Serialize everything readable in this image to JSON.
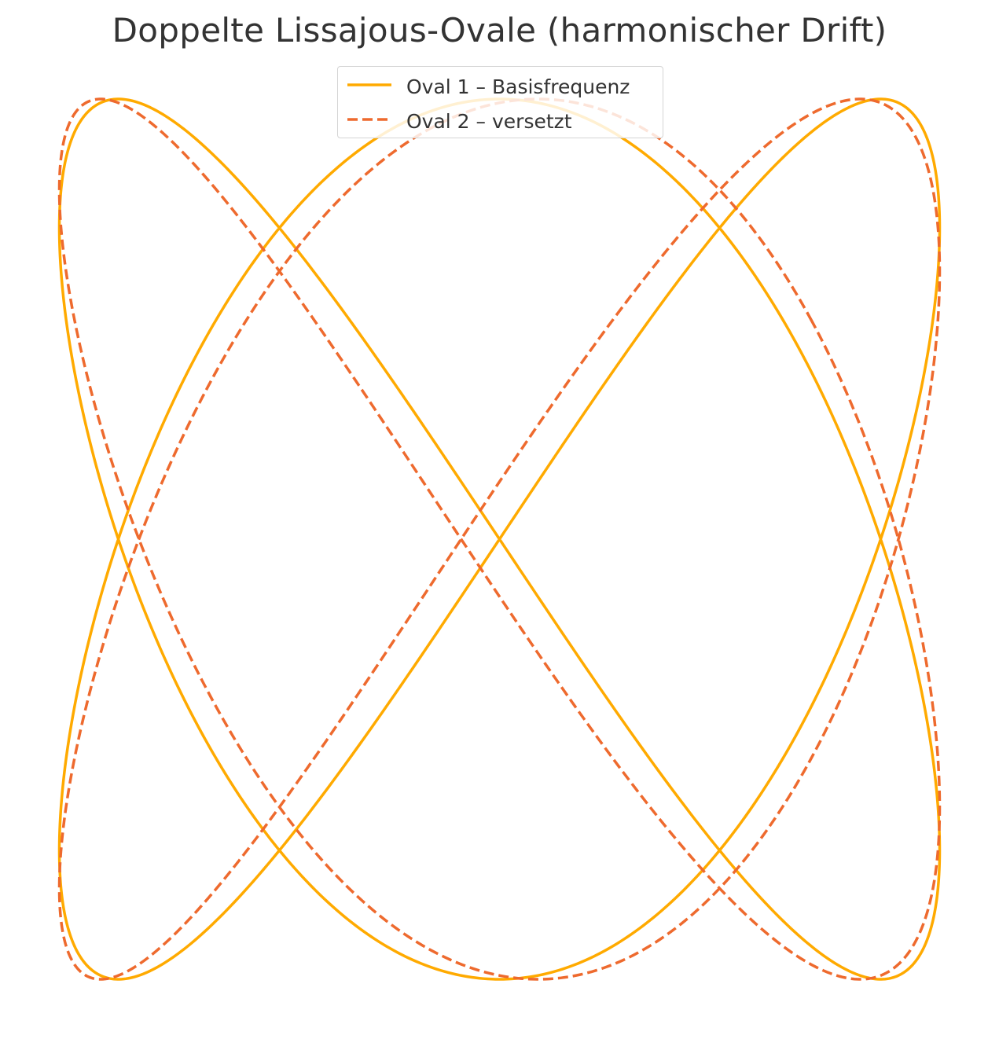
{
  "chart_data": {
    "type": "line",
    "title": "Doppelte Lissajous-Ovale (harmonischer Drift)",
    "xlabel": "",
    "ylabel": "",
    "axes_visible": false,
    "grid": false,
    "legend_position": "upper center",
    "xlim": [
      -1.05,
      1.05
    ],
    "ylim": [
      -1.05,
      1.05
    ],
    "series": [
      {
        "name": "Oval 1 – Basisfrequenz",
        "color": "#FFAA00",
        "style": "solid",
        "curve": "lissajous",
        "x_equation": "sin(2*t)",
        "y_equation": "cos(3*t)",
        "x_amplitude": 1.0,
        "y_amplitude": 1.0,
        "frequency_x": 2,
        "frequency_y": 3,
        "phase_x": 0.0,
        "phase_y": 0.0
      },
      {
        "name": "Oval 2 – versetzt",
        "color": "#EE6A2E",
        "style": "dashed",
        "curve": "lissajous",
        "x_equation": "sin(2*t + π/4)",
        "y_equation": "cos(3*t + π/3)",
        "x_amplitude": 1.0,
        "y_amplitude": 1.0,
        "frequency_x": 2,
        "frequency_y": 3,
        "phase_x": 0.7853981634,
        "phase_y": 1.0471975512
      }
    ]
  }
}
